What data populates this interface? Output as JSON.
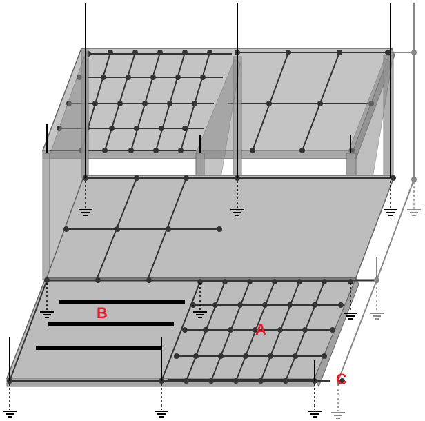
{
  "diagram": {
    "labels": {
      "a": "A",
      "b": "B",
      "c": "C"
    },
    "colors": {
      "slab_fill": "#bdbdbd",
      "wall_fill": "#9a9a9a",
      "beam": "#444444",
      "node": "#333333",
      "rebar": "#000000",
      "ground": "#000000",
      "ground_alt": "#888888",
      "label": "#e0202a"
    },
    "icons": [
      "ground-symbol-icon"
    ]
  }
}
